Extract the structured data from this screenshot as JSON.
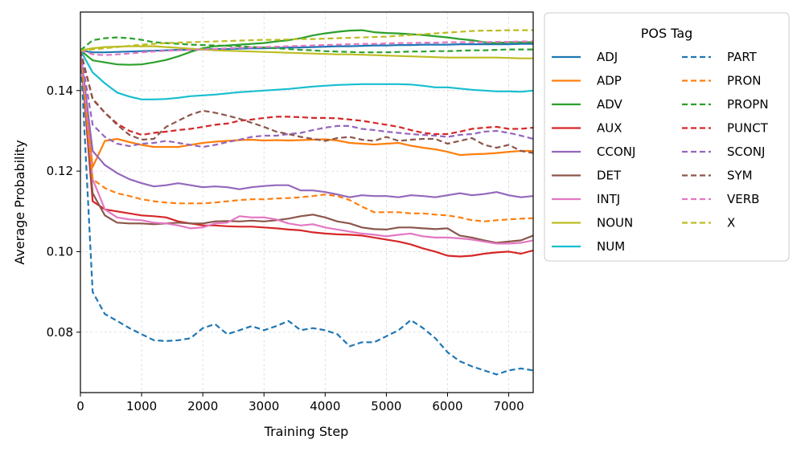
{
  "chart_data": {
    "type": "line",
    "title": "",
    "xlabel": "Training Step",
    "ylabel": "Average Probability",
    "xlim": [
      0,
      7400
    ],
    "ylim": [
      0.065,
      0.1595
    ],
    "xticks": [
      0,
      1000,
      2000,
      3000,
      4000,
      5000,
      6000,
      7000
    ],
    "xtick_labels": [
      "0",
      "1000",
      "2000",
      "3000",
      "4000",
      "5000",
      "6000",
      "7000"
    ],
    "yticks": [
      0.08,
      0.1,
      0.12,
      0.14
    ],
    "ytick_labels": [
      "0.08",
      "0.10",
      "0.12",
      "0.14"
    ],
    "grid": true,
    "legend_title": "POS Tag",
    "legend_position": "outside-right-top",
    "x": [
      0,
      200,
      400,
      600,
      800,
      1000,
      1200,
      1400,
      1600,
      1800,
      2000,
      2200,
      2400,
      2600,
      2800,
      3000,
      3200,
      3400,
      3600,
      3800,
      4000,
      4200,
      4400,
      4600,
      4800,
      5000,
      5200,
      5400,
      5600,
      5800,
      6000,
      6200,
      6400,
      6600,
      6800,
      7000,
      7200,
      7400
    ],
    "series": [
      {
        "name": "ADJ",
        "color": "#1f77b4",
        "style": "solid",
        "values": [
          0.15,
          0.1495,
          0.1495,
          0.1496,
          0.1497,
          0.1498,
          0.1499,
          0.15,
          0.1501,
          0.1501,
          0.1502,
          0.1503,
          0.1503,
          0.1504,
          0.1505,
          0.1505,
          0.1506,
          0.1507,
          0.1507,
          0.1508,
          0.1509,
          0.151,
          0.151,
          0.1511,
          0.1512,
          0.1512,
          0.1513,
          0.1513,
          0.1514,
          0.1514,
          0.1514,
          0.1515,
          0.1515,
          0.1515,
          0.1515,
          0.1515,
          0.1516,
          0.1516
        ]
      },
      {
        "name": "ADP",
        "color": "#ff7f0e",
        "style": "solid",
        "values": [
          0.15,
          0.121,
          0.1275,
          0.128,
          0.1272,
          0.1265,
          0.126,
          0.126,
          0.126,
          0.1265,
          0.127,
          0.1273,
          0.1275,
          0.1277,
          0.1278,
          0.1276,
          0.1277,
          0.1276,
          0.1277,
          0.1278,
          0.1279,
          0.1276,
          0.127,
          0.1268,
          0.1266,
          0.1268,
          0.127,
          0.1263,
          0.1258,
          0.1254,
          0.1248,
          0.124,
          0.1242,
          0.1243,
          0.1245,
          0.1248,
          0.125,
          0.125
        ]
      },
      {
        "name": "ADV",
        "color": "#2ca02c",
        "style": "solid",
        "values": [
          0.15,
          0.1475,
          0.147,
          0.1465,
          0.1464,
          0.1465,
          0.147,
          0.1476,
          0.1485,
          0.1496,
          0.1505,
          0.151,
          0.1512,
          0.1514,
          0.1516,
          0.1518,
          0.1522,
          0.1525,
          0.153,
          0.1537,
          0.1542,
          0.1546,
          0.1549,
          0.155,
          0.1545,
          0.1543,
          0.1542,
          0.154,
          0.1538,
          0.1535,
          0.1532,
          0.1528,
          0.1525,
          0.152,
          0.1518,
          0.152,
          0.152,
          0.152
        ]
      },
      {
        "name": "AUX",
        "color": "#d62728",
        "style": "solid",
        "values": [
          0.15,
          0.1125,
          0.1105,
          0.11,
          0.1095,
          0.109,
          0.1088,
          0.1085,
          0.1075,
          0.107,
          0.1065,
          0.1065,
          0.1063,
          0.1062,
          0.1062,
          0.106,
          0.1058,
          0.1055,
          0.1053,
          0.1048,
          0.1045,
          0.1043,
          0.1042,
          0.104,
          0.1035,
          0.103,
          0.1025,
          0.1018,
          0.1008,
          0.1,
          0.099,
          0.0988,
          0.099,
          0.0995,
          0.0998,
          0.1,
          0.0995,
          0.1003
        ]
      },
      {
        "name": "CCONJ",
        "color": "#9467bd",
        "style": "solid",
        "values": [
          0.15,
          0.125,
          0.1215,
          0.1195,
          0.118,
          0.117,
          0.1162,
          0.1165,
          0.117,
          0.1165,
          0.116,
          0.1162,
          0.116,
          0.1155,
          0.116,
          0.1163,
          0.1165,
          0.1165,
          0.1152,
          0.1152,
          0.1148,
          0.1142,
          0.1135,
          0.114,
          0.1138,
          0.1138,
          0.1135,
          0.114,
          0.1138,
          0.1135,
          0.114,
          0.1145,
          0.114,
          0.1143,
          0.1148,
          0.114,
          0.1135,
          0.1138
        ]
      },
      {
        "name": "DET",
        "color": "#8c564b",
        "style": "solid",
        "values": [
          0.15,
          0.1145,
          0.109,
          0.1072,
          0.107,
          0.107,
          0.1068,
          0.107,
          0.1072,
          0.107,
          0.107,
          0.1075,
          0.1076,
          0.1075,
          0.1077,
          0.1075,
          0.1078,
          0.1082,
          0.1088,
          0.1092,
          0.1085,
          0.1075,
          0.107,
          0.106,
          0.1056,
          0.1055,
          0.106,
          0.106,
          0.1058,
          0.1056,
          0.1058,
          0.104,
          0.1035,
          0.1028,
          0.1022,
          0.1025,
          0.1028,
          0.104
        ]
      },
      {
        "name": "INTJ",
        "color": "#e377c2",
        "style": "solid",
        "values": [
          0.15,
          0.118,
          0.1105,
          0.1085,
          0.108,
          0.1078,
          0.1072,
          0.107,
          0.1065,
          0.1058,
          0.106,
          0.107,
          0.1072,
          0.1088,
          0.1085,
          0.1085,
          0.108,
          0.107,
          0.1065,
          0.1068,
          0.106,
          0.1055,
          0.105,
          0.1045,
          0.1042,
          0.1038,
          0.1042,
          0.1045,
          0.1038,
          0.1035,
          0.1035,
          0.1033,
          0.103,
          0.1025,
          0.102,
          0.102,
          0.1022,
          0.1028
        ]
      },
      {
        "name": "NOUN",
        "color": "#bcbd22",
        "style": "solid",
        "values": [
          0.15,
          0.1505,
          0.1508,
          0.1509,
          0.151,
          0.151,
          0.151,
          0.1508,
          0.1506,
          0.1504,
          0.1502,
          0.15,
          0.1499,
          0.1498,
          0.1497,
          0.1496,
          0.1495,
          0.1494,
          0.1493,
          0.1492,
          0.1491,
          0.149,
          0.149,
          0.1489,
          0.1488,
          0.1487,
          0.1486,
          0.1485,
          0.1484,
          0.1483,
          0.1482,
          0.1482,
          0.1482,
          0.1482,
          0.1482,
          0.1481,
          0.148,
          0.148
        ]
      },
      {
        "name": "NUM",
        "color": "#17becf",
        "style": "solid",
        "values": [
          0.15,
          0.1445,
          0.1418,
          0.1395,
          0.1385,
          0.1378,
          0.1378,
          0.1379,
          0.1382,
          0.1386,
          0.1388,
          0.139,
          0.1393,
          0.1396,
          0.1398,
          0.14,
          0.1402,
          0.1404,
          0.1407,
          0.141,
          0.1412,
          0.1414,
          0.1415,
          0.1416,
          0.1416,
          0.1416,
          0.1416,
          0.1415,
          0.1412,
          0.1408,
          0.1408,
          0.1405,
          0.1402,
          0.14,
          0.1398,
          0.1398,
          0.1397,
          0.14
        ]
      },
      {
        "name": "PART",
        "color": "#1f77b4",
        "style": "dashed",
        "values": [
          0.15,
          0.09,
          0.0845,
          0.0828,
          0.081,
          0.0795,
          0.078,
          0.0778,
          0.078,
          0.0785,
          0.081,
          0.082,
          0.0795,
          0.0805,
          0.0815,
          0.0805,
          0.0815,
          0.0828,
          0.0805,
          0.081,
          0.0805,
          0.0795,
          0.0765,
          0.0775,
          0.0775,
          0.079,
          0.0805,
          0.083,
          0.081,
          0.0785,
          0.075,
          0.0728,
          0.0715,
          0.0705,
          0.0695,
          0.0705,
          0.071,
          0.0705
        ]
      },
      {
        "name": "PRON",
        "color": "#ff7f0e",
        "style": "dashed",
        "values": [
          0.15,
          0.118,
          0.1158,
          0.1145,
          0.1138,
          0.113,
          0.1125,
          0.1122,
          0.112,
          0.112,
          0.112,
          0.1122,
          0.1125,
          0.1128,
          0.113,
          0.113,
          0.1132,
          0.1133,
          0.1135,
          0.1138,
          0.1142,
          0.1138,
          0.1128,
          0.1112,
          0.1098,
          0.1098,
          0.1098,
          0.1095,
          0.1095,
          0.1092,
          0.109,
          0.1085,
          0.1078,
          0.1075,
          0.1078,
          0.108,
          0.1082,
          0.1083
        ]
      },
      {
        "name": "PROPN",
        "color": "#2ca02c",
        "style": "dashed",
        "values": [
          0.15,
          0.1525,
          0.153,
          0.1532,
          0.153,
          0.1526,
          0.152,
          0.1518,
          0.1516,
          0.1514,
          0.1513,
          0.1512,
          0.1511,
          0.151,
          0.1508,
          0.1507,
          0.1505,
          0.1503,
          0.1501,
          0.15,
          0.1498,
          0.1497,
          0.1496,
          0.1495,
          0.1495,
          0.1495,
          0.1496,
          0.1497,
          0.1497,
          0.1498,
          0.1498,
          0.1499,
          0.15,
          0.15,
          0.1501,
          0.1502,
          0.1502,
          0.1502
        ]
      },
      {
        "name": "PUNCT",
        "color": "#d62728",
        "style": "dashed",
        "values": [
          0.15,
          0.138,
          0.1345,
          0.1318,
          0.13,
          0.129,
          0.1295,
          0.1298,
          0.1302,
          0.1305,
          0.131,
          0.1315,
          0.1318,
          0.1325,
          0.1328,
          0.1332,
          0.1335,
          0.1335,
          0.1334,
          0.1332,
          0.1332,
          0.1331,
          0.1328,
          0.1325,
          0.132,
          0.1315,
          0.131,
          0.1302,
          0.1295,
          0.1292,
          0.1292,
          0.1298,
          0.1305,
          0.1308,
          0.131,
          0.1305,
          0.1305,
          0.1308
        ]
      },
      {
        "name": "SCONJ",
        "color": "#9467bd",
        "style": "dashed",
        "values": [
          0.15,
          0.1315,
          0.1285,
          0.1268,
          0.1262,
          0.1268,
          0.127,
          0.1275,
          0.127,
          0.1265,
          0.126,
          0.1265,
          0.1272,
          0.1278,
          0.1285,
          0.1288,
          0.1288,
          0.1292,
          0.1295,
          0.1302,
          0.1308,
          0.1312,
          0.1312,
          0.1305,
          0.1302,
          0.1298,
          0.1295,
          0.1292,
          0.129,
          0.1288,
          0.1285,
          0.129,
          0.1292,
          0.1298,
          0.13,
          0.1295,
          0.1288,
          0.128
        ]
      },
      {
        "name": "SYM",
        "color": "#8c564b",
        "style": "dashed",
        "values": [
          0.15,
          0.1378,
          0.1345,
          0.1315,
          0.129,
          0.1278,
          0.128,
          0.131,
          0.1325,
          0.134,
          0.135,
          0.1345,
          0.1338,
          0.133,
          0.132,
          0.131,
          0.1298,
          0.1292,
          0.1285,
          0.128,
          0.1275,
          0.1282,
          0.1285,
          0.1278,
          0.1275,
          0.1285,
          0.1275,
          0.1278,
          0.128,
          0.128,
          0.1268,
          0.1275,
          0.1282,
          0.1265,
          0.1258,
          0.1265,
          0.125,
          0.1245
        ]
      },
      {
        "name": "VERB",
        "color": "#e377c2",
        "style": "dashed",
        "values": [
          0.15,
          0.149,
          0.1488,
          0.149,
          0.1492,
          0.1495,
          0.1497,
          0.1499,
          0.15,
          0.1501,
          0.1502,
          0.1503,
          0.1505,
          0.1506,
          0.1507,
          0.1508,
          0.1509,
          0.151,
          0.1511,
          0.1512,
          0.1513,
          0.1514,
          0.1515,
          0.1516,
          0.1516,
          0.1517,
          0.1518,
          0.1518,
          0.1519,
          0.1519,
          0.152,
          0.152,
          0.152,
          0.152,
          0.1521,
          0.1521,
          0.1522,
          0.1522
        ]
      },
      {
        "name": "X",
        "color": "#bcbd22",
        "style": "dashed",
        "values": [
          0.15,
          0.1502,
          0.1505,
          0.1508,
          0.1511,
          0.1514,
          0.1516,
          0.1518,
          0.1519,
          0.152,
          0.1521,
          0.1522,
          0.1523,
          0.1524,
          0.1525,
          0.1526,
          0.1526,
          0.1527,
          0.1528,
          0.1528,
          0.1529,
          0.153,
          0.1531,
          0.1532,
          0.1533,
          0.1534,
          0.1536,
          0.1538,
          0.154,
          0.1542,
          0.1544,
          0.1546,
          0.1548,
          0.1549,
          0.1549,
          0.155,
          0.155,
          0.155
        ]
      }
    ]
  }
}
